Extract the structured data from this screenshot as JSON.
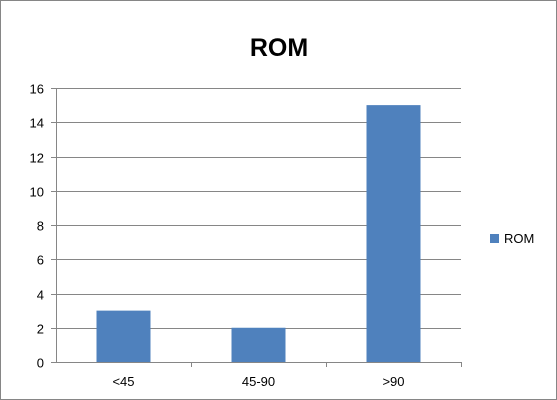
{
  "chart_data": {
    "type": "bar",
    "title": "ROM",
    "xlabel": "",
    "ylabel": "",
    "categories": [
      "<45",
      "45-90",
      ">90"
    ],
    "series": [
      {
        "name": "ROM",
        "values": [
          3,
          2,
          15
        ],
        "color": "#4F81BD"
      }
    ],
    "ylim": [
      0,
      16
    ],
    "yticks": [
      0,
      2,
      4,
      6,
      8,
      10,
      12,
      14,
      16
    ],
    "grid": true,
    "legend_position": "right"
  }
}
